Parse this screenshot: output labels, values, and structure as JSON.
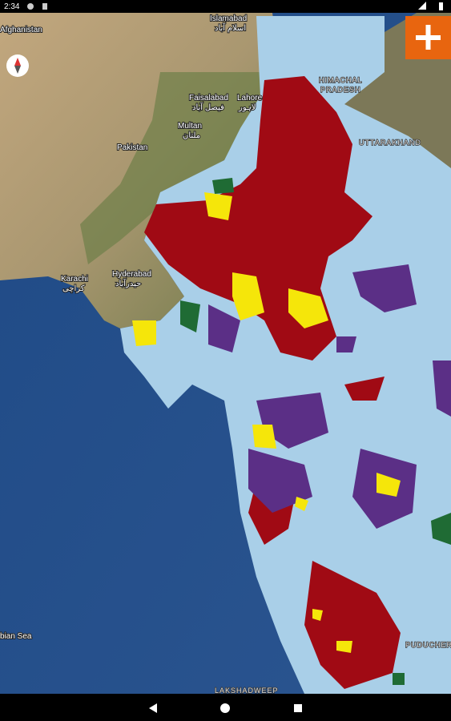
{
  "status_bar": {
    "time": "2:34"
  },
  "map": {
    "labels": [
      {
        "text": "Afghanistan",
        "kind": "country"
      },
      {
        "text": "Islamabad",
        "kind": "city"
      },
      {
        "text": "اسلام آباد",
        "kind": "city-local"
      },
      {
        "text": "Faisalabad",
        "kind": "city"
      },
      {
        "text": "فیصل آباد",
        "kind": "city-local"
      },
      {
        "text": "Lahore",
        "kind": "city"
      },
      {
        "text": "لاہور",
        "kind": "city-local"
      },
      {
        "text": "Multan",
        "kind": "city"
      },
      {
        "text": "ملتان",
        "kind": "city-local"
      },
      {
        "text": "Pakistan",
        "kind": "country"
      },
      {
        "text": "Hyderabad",
        "kind": "city"
      },
      {
        "text": "حیدرآباد",
        "kind": "city-local"
      },
      {
        "text": "Karachi",
        "kind": "city"
      },
      {
        "text": "کراچی",
        "kind": "city-local"
      },
      {
        "text": "HIMACHAL",
        "kind": "state"
      },
      {
        "text": "PRADESH",
        "kind": "state"
      },
      {
        "text": "UTTARAKHAND",
        "kind": "state"
      },
      {
        "text": "LAKSHADWEEP",
        "kind": "state"
      },
      {
        "text": "PUDUCHERRY",
        "kind": "state"
      },
      {
        "text": "bian Sea",
        "kind": "sea"
      }
    ]
  }
}
